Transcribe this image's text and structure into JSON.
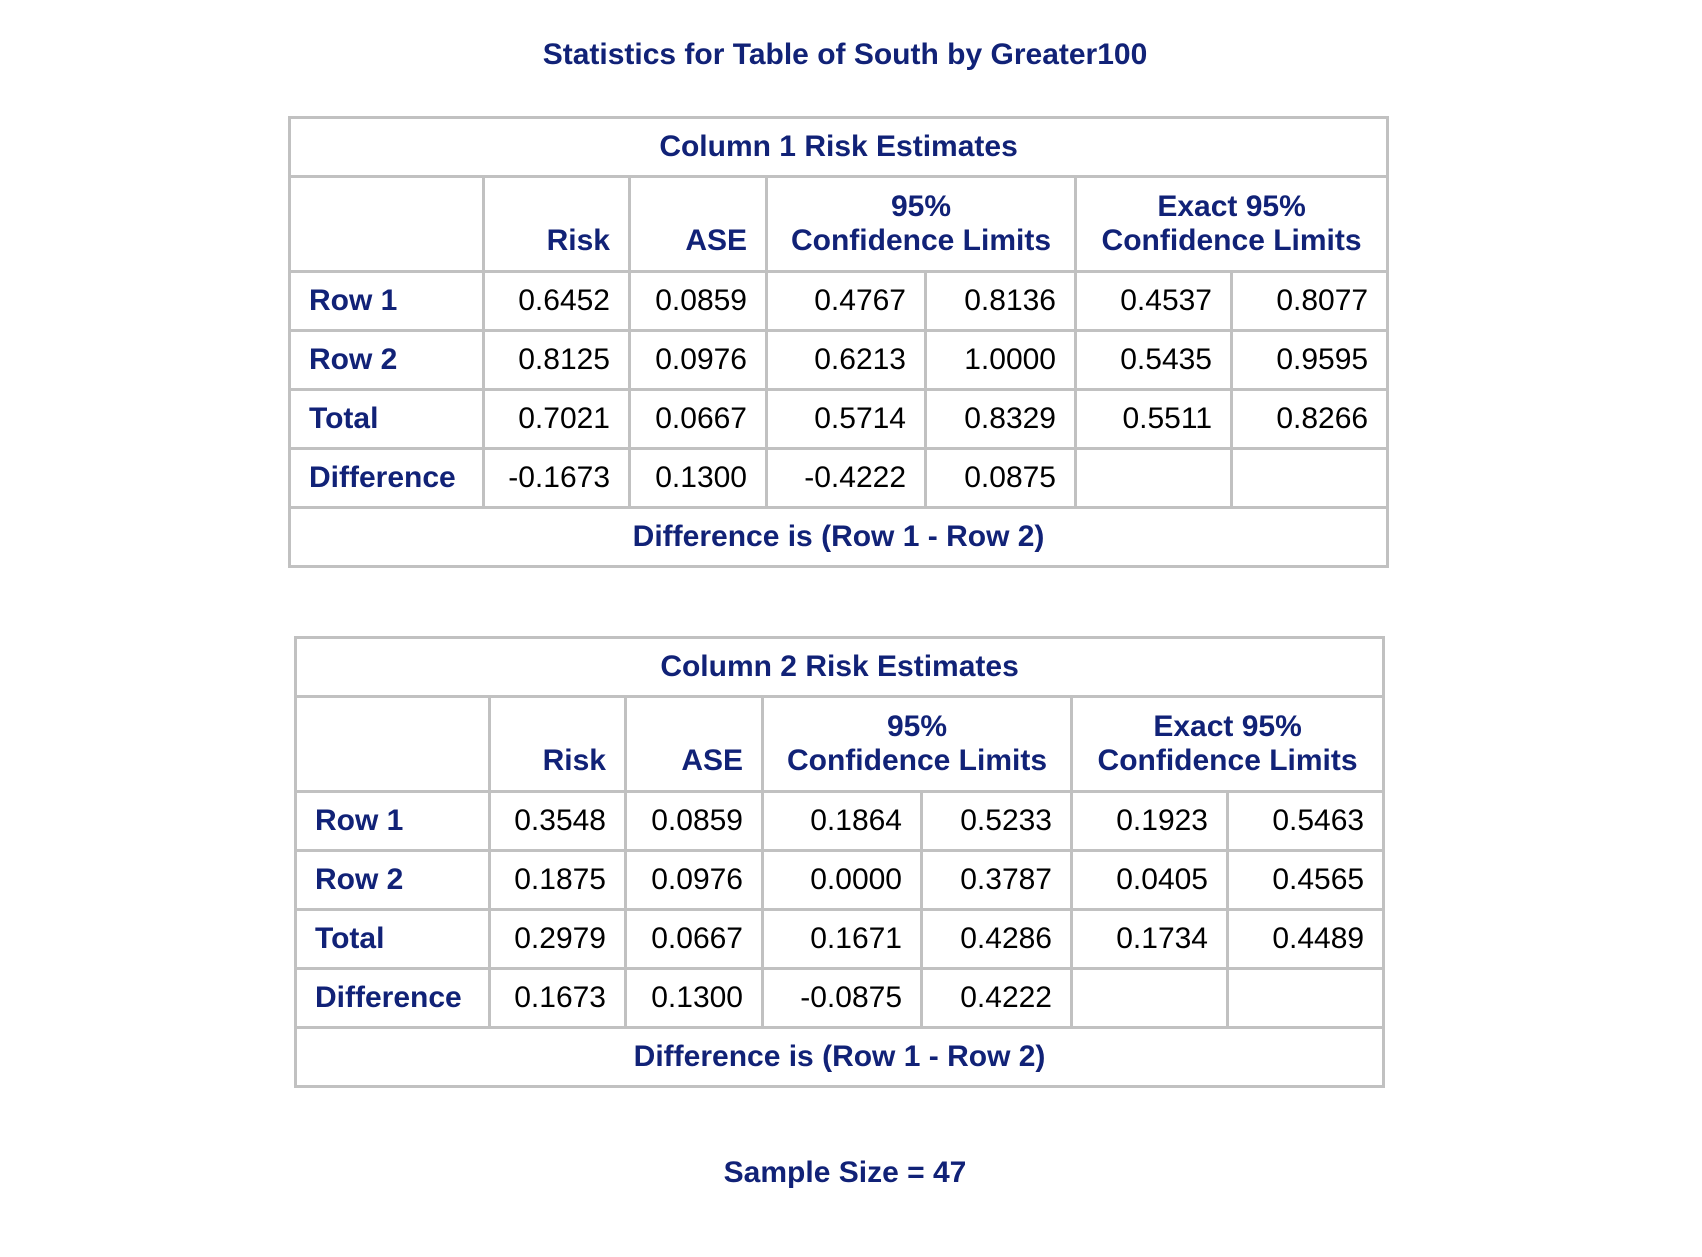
{
  "title": "Statistics for Table of South by Greater100",
  "tables": [
    {
      "caption": "Column 1 Risk Estimates",
      "headers": {
        "risk": "Risk",
        "ase": "ASE",
        "cl_top": "95%",
        "cl_bottom": "Confidence Limits",
        "exact_top": "Exact 95%",
        "exact_bottom": "Confidence Limits"
      },
      "rows": [
        {
          "label": "Row 1",
          "cells": [
            "0.6452",
            "0.0859",
            "0.4767",
            "0.8136",
            "0.4537",
            "0.8077"
          ]
        },
        {
          "label": "Row 2",
          "cells": [
            "0.8125",
            "0.0976",
            "0.6213",
            "1.0000",
            "0.5435",
            "0.9595"
          ]
        },
        {
          "label": "Total",
          "cells": [
            "0.7021",
            "0.0667",
            "0.5714",
            "0.8329",
            "0.5511",
            "0.8266"
          ]
        },
        {
          "label": "Difference",
          "cells": [
            "-0.1673",
            "0.1300",
            "-0.4222",
            "0.0875",
            "",
            ""
          ]
        }
      ],
      "footnote": "Difference is (Row 1 - Row 2)"
    },
    {
      "caption": "Column 2 Risk Estimates",
      "headers": {
        "risk": "Risk",
        "ase": "ASE",
        "cl_top": "95%",
        "cl_bottom": "Confidence Limits",
        "exact_top": "Exact 95%",
        "exact_bottom": "Confidence Limits"
      },
      "rows": [
        {
          "label": "Row 1",
          "cells": [
            "0.3548",
            "0.0859",
            "0.1864",
            "0.5233",
            "0.1923",
            "0.5463"
          ]
        },
        {
          "label": "Row 2",
          "cells": [
            "0.1875",
            "0.0976",
            "0.0000",
            "0.3787",
            "0.0405",
            "0.4565"
          ]
        },
        {
          "label": "Total",
          "cells": [
            "0.2979",
            "0.0667",
            "0.1671",
            "0.4286",
            "0.1734",
            "0.4489"
          ]
        },
        {
          "label": "Difference",
          "cells": [
            "0.1673",
            "0.1300",
            "-0.0875",
            "0.4222",
            "",
            ""
          ]
        }
      ],
      "footnote": "Difference is (Row 1 - Row 2)"
    }
  ],
  "sample_size": "Sample Size = 47",
  "colors": {
    "header_text": "#112277",
    "border": "#c1c1c1"
  }
}
